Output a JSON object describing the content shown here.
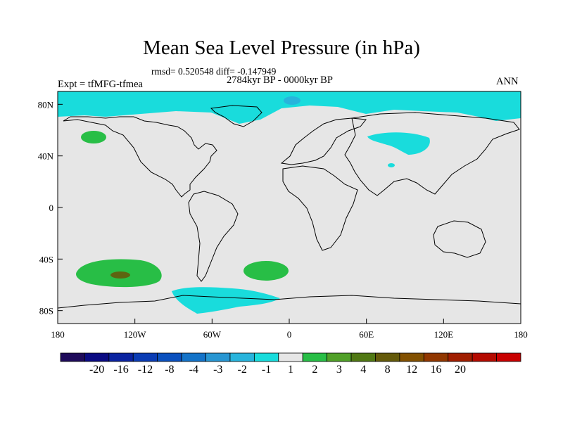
{
  "title": "Mean Sea Level Pressure (in hPa)",
  "stats": "rmsd= 0.520548 diff= -0.147949",
  "period": "2784kyr BP - 0000kyr BP",
  "experiment": "Expt = tfMFG-tfmea",
  "season": "ANN",
  "colors": {
    "land_outline": "#000000",
    "background_field": "#e6e6e6",
    "frame": "#000000"
  },
  "lat_axis": {
    "ticks": [
      80,
      40,
      0,
      -40,
      -80
    ],
    "labels": [
      "80N",
      "40N",
      "0",
      "40S",
      "80S"
    ]
  },
  "lon_axis": {
    "ticks": [
      -180,
      -120,
      -60,
      0,
      60,
      120,
      180
    ],
    "labels": [
      "180",
      "120W",
      "60W",
      "0",
      "60E",
      "120E",
      "180"
    ]
  },
  "colorbar": {
    "colors": [
      "#1e0a5a",
      "#0a0a82",
      "#0a23a0",
      "#0a3cb4",
      "#0a50be",
      "#1473c8",
      "#2896d2",
      "#28b4dc",
      "#19dcdc",
      "#e6e6e6",
      "#28be46",
      "#50a028",
      "#507814",
      "#645a0a",
      "#825000",
      "#913700",
      "#a01e00",
      "#b40a00",
      "#c80000"
    ],
    "labels": [
      "-20",
      "-16",
      "-12",
      "-8",
      "-4",
      "-3",
      "-2",
      "-1",
      "1",
      "2",
      "3",
      "4",
      "8",
      "12",
      "16",
      "20"
    ]
  }
}
